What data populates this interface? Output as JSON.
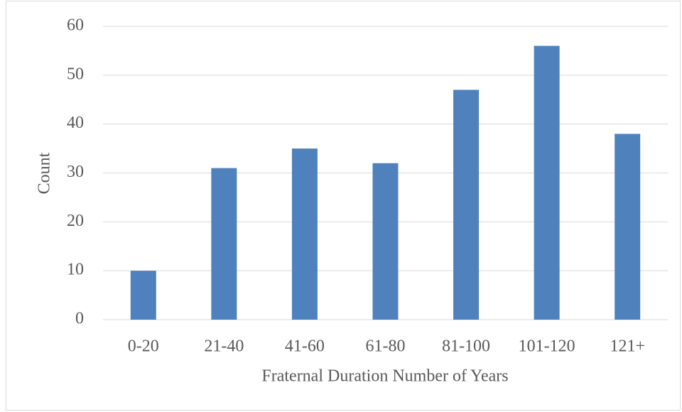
{
  "chart_data": {
    "type": "bar",
    "x_label": "Fraternal Duration Number of Years",
    "y_label": "Count",
    "categories": [
      "0-20",
      "21-40",
      "41-60",
      "61-80",
      "81-100",
      "101-120",
      "121+"
    ],
    "values": [
      10,
      31,
      35,
      32,
      47,
      56,
      38
    ],
    "color": "#4f81bd",
    "ylim": [
      0,
      60
    ],
    "yticks": [
      0,
      10,
      20,
      30,
      40,
      50,
      60
    ],
    "grid": true
  }
}
